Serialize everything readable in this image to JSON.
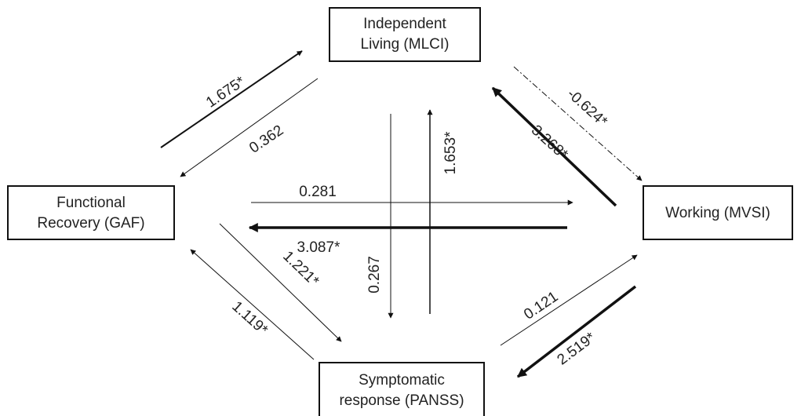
{
  "nodes": [
    {
      "lines": [
        "Independent",
        "Living (MLCI)"
      ]
    },
    {
      "lines": [
        "Functional",
        "Recovery (GAF)"
      ]
    },
    {
      "lines": [
        "Working (MVSI)"
      ]
    },
    {
      "lines": [
        "Symptomatic",
        "response (PANSS)"
      ]
    }
  ],
  "edges": [
    {
      "label": "1.675*"
    },
    {
      "label": "0.362"
    },
    {
      "label": "-0.624*"
    },
    {
      "label": "3.268*"
    },
    {
      "label": "0.281"
    },
    {
      "label": "3.087*"
    },
    {
      "label": "1.653*"
    },
    {
      "label": "0.267"
    },
    {
      "label": "1.221*"
    },
    {
      "label": "1.119*"
    },
    {
      "label": "0.121"
    },
    {
      "label": "2.519*"
    }
  ]
}
